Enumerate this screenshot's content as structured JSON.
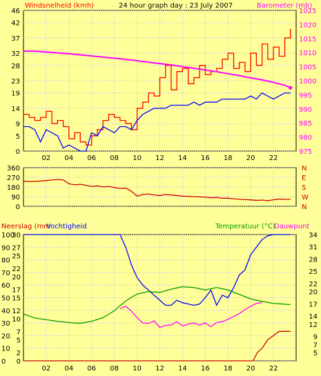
{
  "colors": {
    "background": "#ffff99",
    "grid": "#b3b3ff",
    "axis": "#000000",
    "wind_gust": "#ff0000",
    "wind_avg": "#0000ff",
    "barometer": "#ff00ff",
    "direction": "#cc0000",
    "rain": "#cc0000",
    "humidity": "#0000ff",
    "temperature": "#009900",
    "dewpoint": "#ff00ff"
  },
  "texts": {
    "title": "24 hour graph day : 23 July 2007",
    "wind_label": "Windsnelheid (kmh)",
    "baro_label": "Barometer (mb)",
    "rain_label": "Neerslag (mm",
    "hum_label": "Vochtigheid",
    "temp_label": "Temperatuur (°C)",
    "dew_label": "Dauwpunt"
  },
  "chart_data": [
    {
      "type": "line",
      "panel": "wind-barometer",
      "x_ticks": [
        "02",
        "04",
        "06",
        "08",
        "10",
        "12",
        "14",
        "16",
        "18",
        "20",
        "22"
      ],
      "xlim": [
        0,
        24
      ],
      "y_left_label": "Windsnelheid (kmh)",
      "y_left_ticks": [
        0,
        5,
        9,
        14,
        19,
        23,
        28,
        32,
        37,
        42,
        46
      ],
      "ylim_left": [
        0,
        46
      ],
      "y_right_label": "Barometer (mb)",
      "y_right_ticks": [
        975,
        980,
        985,
        990,
        995,
        1000,
        1005,
        1010,
        1015,
        1020,
        1025
      ],
      "ylim_right": [
        975,
        1025
      ],
      "grid": true,
      "series": [
        {
          "key": "gust",
          "axis": "left",
          "style": "step",
          "x": [
            0.0,
            0.5,
            1.0,
            1.5,
            2.0,
            2.5,
            3.0,
            3.5,
            4.0,
            4.5,
            5.0,
            5.5,
            6.0,
            6.5,
            7.0,
            7.5,
            8.0,
            8.5,
            9.0,
            9.5,
            10.0,
            10.5,
            11.0,
            11.5,
            12.0,
            12.5,
            13.0,
            13.5,
            14.0,
            14.5,
            15.0,
            15.5,
            16.0,
            16.5,
            17.0,
            17.5,
            18.0,
            18.5,
            19.0,
            19.5,
            20.0,
            20.5,
            21.0,
            21.5,
            22.0,
            22.5,
            23.0,
            23.5
          ],
          "values": [
            12,
            11,
            10,
            11,
            13,
            9,
            10,
            8,
            4,
            6,
            3,
            2,
            5,
            7,
            10,
            12,
            11,
            10,
            9,
            7,
            14,
            16,
            19,
            18,
            24,
            28,
            20,
            26,
            27,
            22,
            24,
            28,
            25,
            26,
            27,
            30,
            32,
            27,
            29,
            26,
            32,
            28,
            35,
            30,
            34,
            31,
            37,
            40
          ]
        },
        {
          "key": "average",
          "axis": "left",
          "style": "line",
          "x": [
            0.0,
            0.5,
            1.0,
            1.5,
            2.0,
            2.5,
            3.0,
            3.5,
            4.0,
            4.5,
            5.0,
            5.5,
            6.0,
            6.5,
            7.0,
            7.5,
            8.0,
            8.5,
            9.0,
            9.5,
            10.0,
            10.5,
            11.0,
            11.5,
            12.0,
            12.5,
            13.0,
            13.5,
            14.0,
            14.5,
            15.0,
            15.5,
            16.0,
            16.5,
            17.0,
            17.5,
            18.0,
            18.5,
            19.0,
            19.5,
            20.0,
            20.5,
            21.0,
            21.5,
            22.0,
            22.5,
            23.0,
            23.5
          ],
          "values": [
            8,
            8,
            7,
            3,
            7,
            6,
            5,
            1,
            2,
            1,
            0,
            0,
            6,
            5,
            8,
            7,
            6,
            8,
            8,
            7,
            10,
            12,
            13,
            14,
            14,
            14,
            15,
            15,
            15,
            15,
            16,
            15,
            16,
            16,
            16,
            17,
            17,
            17,
            17,
            17,
            18,
            17,
            19,
            18,
            17,
            18,
            19,
            19
          ]
        },
        {
          "key": "barometer",
          "axis": "right",
          "style": "line",
          "x": [
            0,
            1,
            2,
            3,
            4,
            5,
            6,
            7,
            8,
            9,
            10,
            11,
            12,
            13,
            14,
            15,
            16,
            17,
            18,
            19,
            20,
            21,
            22,
            23,
            23.5
          ],
          "values": [
            1010.5,
            1010.5,
            1010.2,
            1009.9,
            1009.6,
            1009.2,
            1008.8,
            1008.4,
            1008.0,
            1007.6,
            1007.1,
            1006.6,
            1006.1,
            1005.6,
            1005.0,
            1004.4,
            1003.8,
            1003.2,
            1002.5,
            1001.8,
            1001.0,
            1000.3,
            999.4,
            998.4,
            997.5
          ]
        }
      ]
    },
    {
      "type": "line",
      "panel": "wind-direction",
      "x_ticks": [
        "02",
        "04",
        "06",
        "08",
        "10",
        "12",
        "14",
        "16",
        "18",
        "20",
        "22"
      ],
      "xlim": [
        0,
        24
      ],
      "y_left_ticks": [
        0,
        90,
        180,
        270,
        360
      ],
      "ylim": [
        0,
        360
      ],
      "y_right_ticks": [
        "N",
        "W",
        "S",
        "E",
        "N"
      ],
      "grid": true,
      "series": [
        {
          "key": "direction",
          "x": [
            0,
            0.5,
            1,
            1.5,
            2,
            2.5,
            3,
            3.5,
            4,
            4.5,
            5,
            5.5,
            6,
            6.5,
            7,
            7.5,
            8,
            8.5,
            9,
            9.5,
            10,
            10.5,
            11,
            11.5,
            12,
            12.5,
            13,
            13.5,
            14,
            14.5,
            15,
            15.5,
            16,
            16.5,
            17,
            17.5,
            18,
            18.5,
            19,
            19.5,
            20,
            20.5,
            21,
            21.5,
            22,
            22.5,
            23,
            23.5
          ],
          "values": [
            235,
            230,
            232,
            235,
            240,
            245,
            250,
            245,
            210,
            200,
            205,
            195,
            185,
            190,
            180,
            185,
            175,
            165,
            170,
            140,
            95,
            110,
            115,
            105,
            100,
            110,
            105,
            100,
            95,
            92,
            90,
            88,
            85,
            80,
            83,
            75,
            75,
            70,
            65,
            62,
            60,
            55,
            58,
            52,
            60,
            68,
            65,
            65
          ]
        }
      ]
    },
    {
      "type": "line",
      "panel": "rain-humidity-temperature",
      "x_ticks": [
        "02",
        "04",
        "06",
        "08",
        "10",
        "12",
        "14",
        "16",
        "18",
        "20",
        "22"
      ],
      "xlim": [
        0,
        24
      ],
      "y_left_label": "Neerslag (mm",
      "y_humidity_label": "Vochtigheid",
      "y_right_label": "Temperatuur (°C)",
      "y_right_label_2": "Dauwpunt",
      "y_rain_ticks": [
        0,
        2,
        5,
        7,
        10,
        12,
        15,
        17,
        20,
        22,
        25,
        27,
        30
      ],
      "ylim_rain": [
        0,
        30
      ],
      "y_humidity_ticks": [
        0,
        10,
        20,
        30,
        40,
        50,
        60,
        70,
        80,
        90,
        100
      ],
      "ylim_humidity": [
        0,
        100
      ],
      "y_temperature_ticks": [
        5,
        7,
        9,
        12,
        14,
        17,
        20,
        22,
        25,
        28,
        31,
        34
      ],
      "ylim_temperature": [
        3,
        34
      ],
      "grid": true,
      "series": [
        {
          "key": "rain",
          "axis": "rain",
          "style": "step",
          "x": [
            0,
            20.2,
            20.6,
            21.0,
            21.5,
            22.0,
            22.5,
            23.0,
            23.5
          ],
          "values": [
            0,
            0,
            2,
            3,
            5,
            6,
            7,
            7,
            7
          ]
        },
        {
          "key": "humidity",
          "axis": "humidity",
          "x": [
            0,
            1,
            2,
            3,
            4,
            5,
            6,
            7,
            7.5,
            8,
            8.5,
            9,
            9.5,
            10,
            10.5,
            11,
            11.5,
            12,
            12.5,
            13,
            13.5,
            14,
            14.5,
            15,
            15.5,
            16,
            16.5,
            17,
            17.5,
            18,
            18.5,
            19,
            19.5,
            20,
            20.5,
            21,
            21.5,
            22,
            22.5,
            23,
            23.5
          ],
          "values": [
            100,
            100,
            100,
            100,
            100,
            100,
            100,
            100,
            100,
            100,
            100,
            90,
            76,
            66,
            60,
            56,
            52,
            48,
            44,
            44,
            48,
            46,
            45,
            44,
            45,
            50,
            56,
            44,
            52,
            50,
            58,
            68,
            72,
            84,
            90,
            96,
            99,
            100,
            100,
            100,
            100
          ]
        },
        {
          "key": "temperature",
          "axis": "temperature",
          "x": [
            0,
            1,
            2,
            3,
            4,
            5,
            6,
            7,
            8,
            9,
            10,
            11,
            12,
            13,
            14,
            15,
            16,
            17,
            18,
            19,
            20,
            21,
            22,
            23,
            23.5
          ],
          "values": [
            14.5,
            13.5,
            13.1,
            12.7,
            12.4,
            12.2,
            12.7,
            13.6,
            15.3,
            17.7,
            19.4,
            20.0,
            19.8,
            20.6,
            21.2,
            21.0,
            20.4,
            21.0,
            20.4,
            19.3,
            18.2,
            17.6,
            17.1,
            16.9,
            16.8
          ]
        },
        {
          "key": "dewpoint",
          "axis": "temperature",
          "x": [
            8.5,
            9,
            9.5,
            10,
            10.5,
            11,
            11.5,
            12,
            12.5,
            13,
            13.5,
            14,
            14.5,
            15,
            15.5,
            16,
            16.5,
            17,
            17.5,
            18,
            18.5,
            19,
            19.5,
            20,
            20.5,
            21
          ],
          "values": [
            15.8,
            16.4,
            15.2,
            13.6,
            12.3,
            12.2,
            12.8,
            11.2,
            11.7,
            11.8,
            12.6,
            11.6,
            12.0,
            12.3,
            11.8,
            12.3,
            11.4,
            12.4,
            12.6,
            13.2,
            13.9,
            14.6,
            15.6,
            16.4,
            17.1,
            17.3
          ]
        }
      ]
    }
  ]
}
